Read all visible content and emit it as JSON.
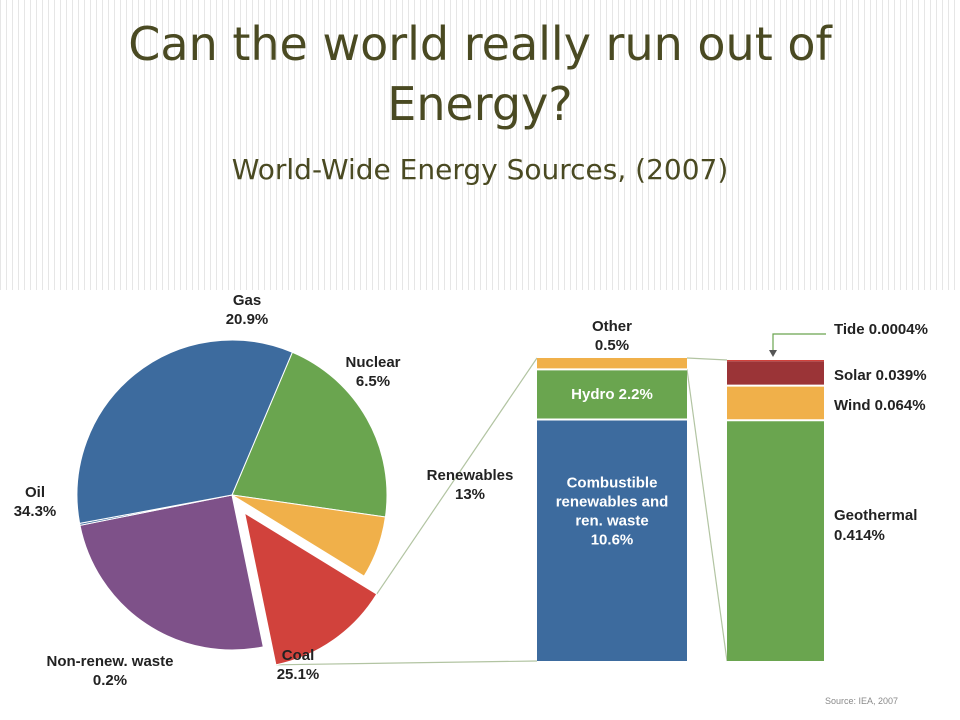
{
  "title": "Can the world really run out of Energy?",
  "subtitle": "World-Wide Energy Sources, (2007)",
  "source": "Source: IEA, 2007",
  "colors": {
    "title": "#4a4a22",
    "oil": "#3d6b9e",
    "gas": "#6aa54f",
    "nuclear": "#f0b04a",
    "renewables": "#d1423c",
    "coal": "#7e5189",
    "non_renew_waste": "#3d6b9e",
    "connector": "#b2c4a2",
    "arrow": "#6aa54f"
  },
  "chart_data": [
    {
      "type": "pie",
      "slices": [
        {
          "key": "gas",
          "name": "Gas",
          "value": 20.9,
          "value_label": "20.9%"
        },
        {
          "key": "nuclear",
          "name": "Nuclear",
          "value": 6.5,
          "value_label": "6.5%"
        },
        {
          "key": "renewables",
          "name": "Renewables",
          "value": 13,
          "value_label": "13%",
          "exploded": true
        },
        {
          "key": "coal",
          "name": "Coal",
          "value": 25.1,
          "value_label": "25.1%"
        },
        {
          "key": "non_renew_waste",
          "name": "Non-renew. waste",
          "value": 0.2,
          "value_label": "0.2%"
        },
        {
          "key": "oil",
          "name": "Oil",
          "value": 34.3,
          "value_label": "34.3%"
        }
      ]
    },
    {
      "type": "bar",
      "stacked": true,
      "segments": [
        {
          "key": "combustible",
          "lines": [
            "Combustible",
            "renewables and",
            "ren. waste",
            "10.6%"
          ],
          "value": 10.6,
          "color": "#3d6b9e",
          "label_position": "inside"
        },
        {
          "key": "hydro",
          "lines": [
            "Hydro 2.2%"
          ],
          "value": 2.2,
          "color": "#6aa54f",
          "label_position": "inside"
        },
        {
          "key": "other",
          "lines": [
            "Other",
            "0.5%"
          ],
          "value": 0.5,
          "color": "#f0b04a",
          "label_position": "above"
        }
      ]
    },
    {
      "type": "bar",
      "stacked": true,
      "segments": [
        {
          "key": "geothermal",
          "lines": [
            "Geothermal",
            "0.414%"
          ],
          "value": 0.414,
          "color": "#6aa54f"
        },
        {
          "key": "wind",
          "lines": [
            "Wind 0.064%"
          ],
          "value": 0.064,
          "color": "#f0b04a"
        },
        {
          "key": "solar",
          "lines": [
            "Solar 0.039%"
          ],
          "value": 0.039,
          "color": "#9b3437"
        },
        {
          "key": "tide",
          "lines": [
            "Tide 0.0004%"
          ],
          "value": 0.0004,
          "color": "#d1423c"
        }
      ]
    }
  ]
}
